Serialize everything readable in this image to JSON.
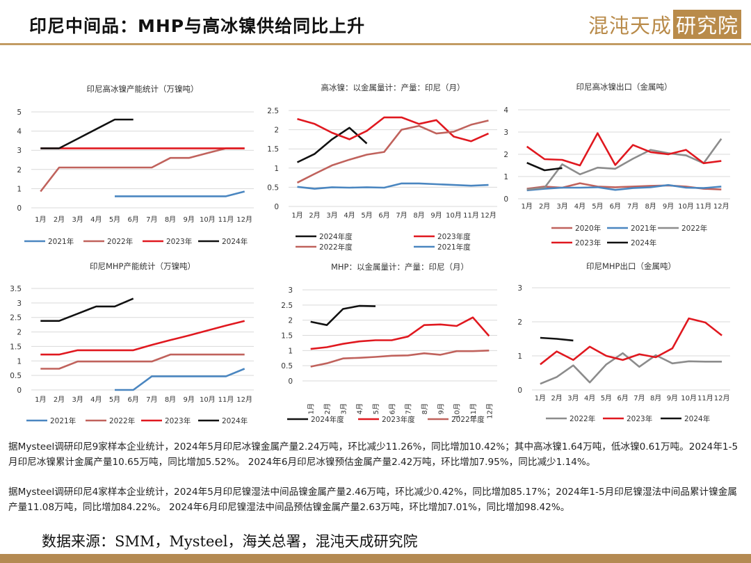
{
  "header": {
    "title": "印尼中间品：MHP与高冰镍供给同比上升",
    "brand_main": "混沌天成",
    "brand_box": "研究院"
  },
  "colors": {
    "blue": "#4a86c0",
    "brown": "#c0625c",
    "red": "#e0181f",
    "black": "#111111",
    "gray": "#8c8c8c",
    "accent": "#c29b63"
  },
  "chart_data": [
    {
      "id": "c1",
      "type": "line",
      "title": "印尼高冰镍产能统计（万镍吨）",
      "categories": [
        "1月",
        "2月",
        "3月",
        "4月",
        "5月",
        "6月",
        "7月",
        "8月",
        "9月",
        "10月",
        "11月",
        "12月"
      ],
      "ylim": [
        0,
        5
      ],
      "yticks": [
        0,
        1,
        2,
        3,
        4,
        5
      ],
      "legend_ncol": 4,
      "series": [
        {
          "name": "2021年",
          "color": "blue",
          "values": [
            null,
            null,
            null,
            null,
            0.6,
            0.6,
            0.6,
            0.6,
            0.6,
            0.6,
            0.6,
            0.85
          ]
        },
        {
          "name": "2022年",
          "color": "brown",
          "values": [
            0.85,
            2.1,
            2.1,
            2.1,
            2.1,
            2.1,
            2.1,
            2.6,
            2.6,
            2.85,
            3.1,
            3.1
          ]
        },
        {
          "name": "2023年",
          "color": "red",
          "values": [
            3.1,
            3.1,
            3.1,
            3.1,
            3.1,
            3.1,
            3.1,
            3.1,
            3.1,
            3.1,
            3.1,
            3.1
          ]
        },
        {
          "name": "2024年",
          "color": "black",
          "values": [
            3.1,
            3.1,
            3.6,
            4.1,
            4.6,
            4.6,
            null,
            null,
            null,
            null,
            null,
            null
          ]
        }
      ]
    },
    {
      "id": "c2",
      "type": "line",
      "title": "高冰镍：以金属量计：产量：印尼（月）",
      "categories": [
        "1月",
        "2月",
        "3月",
        "4月",
        "5月",
        "6月",
        "7月",
        "8月",
        "9月",
        "10月",
        "11月",
        "12月"
      ],
      "ylim": [
        0,
        2.5
      ],
      "yticks": [
        0,
        0.5,
        1,
        1.5,
        2,
        2.5
      ],
      "legend_ncol": 2,
      "series": [
        {
          "name": "2024年度",
          "color": "black",
          "values": [
            1.15,
            1.37,
            1.75,
            2.05,
            1.64,
            null,
            null,
            null,
            null,
            null,
            null,
            null
          ]
        },
        {
          "name": "2023年度",
          "color": "red",
          "values": [
            2.28,
            2.15,
            1.92,
            1.75,
            1.97,
            2.32,
            2.32,
            2.15,
            2.25,
            1.82,
            1.7,
            1.9
          ]
        },
        {
          "name": "2022年度",
          "color": "brown",
          "values": [
            0.62,
            0.85,
            1.07,
            1.22,
            1.35,
            1.42,
            2.0,
            2.1,
            1.9,
            1.95,
            2.13,
            2.24
          ]
        },
        {
          "name": "2021年度",
          "color": "blue",
          "values": [
            0.51,
            0.46,
            0.5,
            0.49,
            0.5,
            0.49,
            0.6,
            0.6,
            0.58,
            0.56,
            0.54,
            0.56
          ]
        }
      ]
    },
    {
      "id": "c3",
      "type": "line",
      "title": "印尼高冰镍出口（金属吨）",
      "categories": [
        "1月",
        "2月",
        "3月",
        "4月",
        "5月",
        "6月",
        "7月",
        "8月",
        "9月",
        "10月",
        "11月",
        "12月"
      ],
      "ylim": [
        0,
        4
      ],
      "yticks": [
        0,
        1,
        2,
        3,
        4
      ],
      "legend_ncol": 3,
      "series": [
        {
          "name": "2020年",
          "color": "brown",
          "values": [
            0.45,
            0.55,
            0.5,
            0.7,
            0.55,
            0.52,
            0.55,
            0.58,
            0.6,
            0.55,
            0.45,
            0.42
          ]
        },
        {
          "name": "2021年",
          "color": "blue",
          "values": [
            0.38,
            0.45,
            0.5,
            0.5,
            0.52,
            0.4,
            0.48,
            0.52,
            0.62,
            0.5,
            0.48,
            0.55
          ]
        },
        {
          "name": "2022年",
          "color": "gray",
          "values": [
            0.42,
            0.5,
            1.55,
            1.1,
            1.4,
            1.35,
            1.8,
            2.2,
            2.05,
            1.95,
            1.6,
            2.7
          ]
        },
        {
          "name": "2023年",
          "color": "red",
          "values": [
            2.35,
            1.78,
            1.75,
            1.5,
            2.95,
            1.52,
            2.42,
            2.1,
            2.0,
            2.2,
            1.6,
            1.7
          ]
        },
        {
          "name": "2024年",
          "color": "black",
          "values": [
            1.62,
            1.28,
            1.38,
            null,
            null,
            null,
            null,
            null,
            null,
            null,
            null,
            null
          ]
        }
      ]
    },
    {
      "id": "c4",
      "type": "line",
      "title": "印尼MHP产能统计（万镍吨）",
      "categories": [
        "1月",
        "2月",
        "3月",
        "4月",
        "5月",
        "6月",
        "7月",
        "8月",
        "9月",
        "10月",
        "11月",
        "12月"
      ],
      "ylim": [
        0,
        3.5
      ],
      "yticks": [
        0,
        0.5,
        1,
        1.5,
        2,
        2.5,
        3,
        3.5
      ],
      "legend_ncol": 4,
      "series": [
        {
          "name": "2021年",
          "color": "blue",
          "values": [
            null,
            null,
            null,
            null,
            0,
            0,
            0.47,
            0.47,
            0.47,
            0.47,
            0.47,
            0.73
          ]
        },
        {
          "name": "2022年",
          "color": "brown",
          "values": [
            0.73,
            0.73,
            0.98,
            0.98,
            0.98,
            0.98,
            0.98,
            1.22,
            1.22,
            1.22,
            1.22,
            1.22
          ]
        },
        {
          "name": "2023年",
          "color": "red",
          "values": [
            1.22,
            1.22,
            1.37,
            1.37,
            1.37,
            1.37,
            1.55,
            1.72,
            1.88,
            2.05,
            2.22,
            2.38
          ]
        },
        {
          "name": "2024年",
          "color": "black",
          "values": [
            2.38,
            2.38,
            2.63,
            2.88,
            2.88,
            3.15,
            null,
            null,
            null,
            null,
            null,
            null
          ]
        }
      ]
    },
    {
      "id": "c5",
      "type": "line",
      "title": "MHP：以金属量计：产量：印尼（月）",
      "categories": [
        "1月",
        "2月",
        "3月",
        "4月",
        "5月",
        "6月",
        "7月",
        "8月",
        "9月",
        "10月",
        "11月",
        "12月"
      ],
      "ylim": [
        0,
        3
      ],
      "yticks": [
        0,
        0.5,
        1,
        1.5,
        2,
        2.5,
        3
      ],
      "legend_ncol": 3,
      "rotate_xticks": true,
      "series": [
        {
          "name": "2024年度",
          "color": "black",
          "values": [
            1.95,
            1.84,
            2.37,
            2.47,
            2.46,
            null,
            null,
            null,
            null,
            null,
            null,
            null
          ]
        },
        {
          "name": "2023年度",
          "color": "red",
          "values": [
            1.05,
            1.11,
            1.22,
            1.3,
            1.34,
            1.34,
            1.46,
            1.84,
            1.86,
            1.81,
            2.09,
            1.48
          ]
        },
        {
          "name": "2022年度",
          "color": "brown",
          "values": [
            0.47,
            0.58,
            0.74,
            0.76,
            0.79,
            0.83,
            0.84,
            0.91,
            0.86,
            0.98,
            0.98,
            1.0
          ]
        }
      ]
    },
    {
      "id": "c6",
      "type": "line",
      "title": "印尼MHP出口（金属吨）",
      "categories": [
        "1月",
        "2月",
        "3月",
        "4月",
        "5月",
        "6月",
        "7月",
        "8月",
        "9月",
        "10月",
        "11月",
        "12月"
      ],
      "ylim": [
        0,
        3
      ],
      "yticks": [
        0,
        1,
        2,
        3
      ],
      "legend_ncol": 3,
      "series": [
        {
          "name": "2022年",
          "color": "gray",
          "values": [
            0.18,
            0.38,
            0.72,
            0.22,
            0.75,
            1.08,
            0.68,
            1.02,
            0.78,
            0.84,
            0.83,
            0.83
          ]
        },
        {
          "name": "2023年",
          "color": "red",
          "values": [
            0.75,
            1.13,
            0.88,
            1.27,
            1.0,
            0.88,
            1.05,
            0.96,
            1.22,
            2.1,
            1.98,
            1.6
          ]
        },
        {
          "name": "2024年",
          "color": "black",
          "values": [
            1.53,
            1.5,
            1.45,
            null,
            null,
            null,
            null,
            null,
            null,
            null,
            null,
            null
          ]
        }
      ]
    }
  ],
  "text": {
    "p1": "据Mysteel调研印尼9家样本企业统计，2024年5月印尼冰镍金属产量2.24万吨，环比减少11.26%，同比增加10.42%；其中高冰镍1.64万吨，低冰镍0.61万吨。2024年1-5月印尼冰镍累计金属产量10.65万吨，同比增加5.52%。 2024年6月印尼冰镍预估金属产量2.42万吨，环比增加7.95%，同比减少1.14%。",
    "p2": "据Mysteel调研印尼4家样本企业统计，2024年5月印尼镍湿法中间品镍金属产量2.46万吨，环比减少0.42%，同比增加85.17%；2024年1-5月印尼镍湿法中间品累计镍金属产量11.08万吨，同比增加84.22%。 2024年6月印尼镍湿法中间品预估镍金属产量2.63万吨，环比增加7.01%，同比增加98.42%。",
    "source": "数据来源：SMM，Mysteel，海关总署，混沌天成研究院"
  }
}
